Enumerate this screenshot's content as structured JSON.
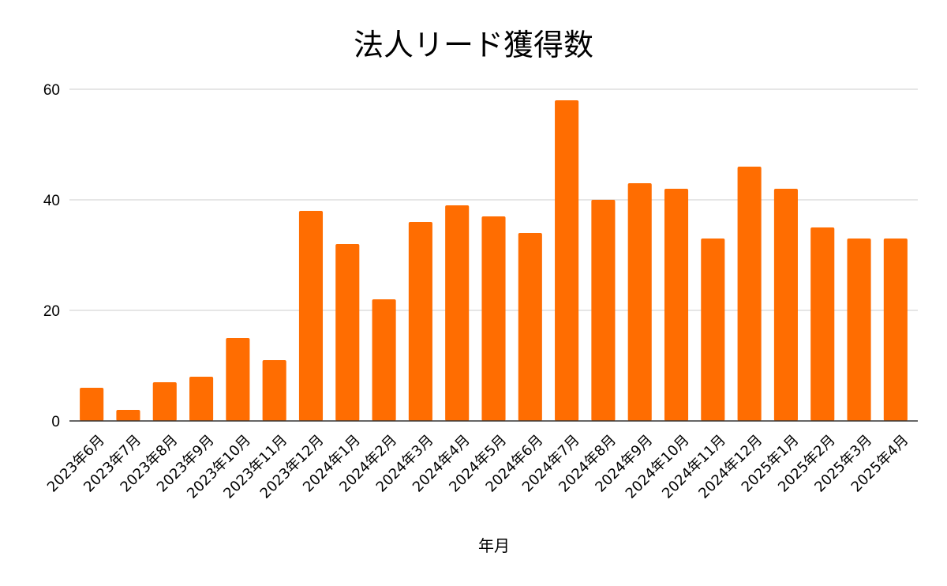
{
  "chart_data": {
    "type": "bar",
    "title": "法人リード獲得数",
    "xlabel": "年月",
    "ylabel": "",
    "ylim": [
      0,
      60
    ],
    "yticks": [
      0,
      20,
      40,
      60
    ],
    "grid": true,
    "bar_color": "#ff6d01",
    "categories": [
      "2023年6月",
      "2023年7月",
      "2023年8月",
      "2023年9月",
      "2023年10月",
      "2023年11月",
      "2023年12月",
      "2024年1月",
      "2024年2月",
      "2024年3月",
      "2024年4月",
      "2024年5月",
      "2024年6月",
      "2024年7月",
      "2024年8月",
      "2024年9月",
      "2024年10月",
      "2024年11月",
      "2024年12月",
      "2025年1月",
      "2025年2月",
      "2025年3月",
      "2025年4月"
    ],
    "values": [
      6,
      2,
      7,
      8,
      15,
      11,
      38,
      32,
      22,
      36,
      39,
      37,
      34,
      58,
      40,
      43,
      42,
      33,
      46,
      42,
      35,
      33,
      33
    ]
  }
}
